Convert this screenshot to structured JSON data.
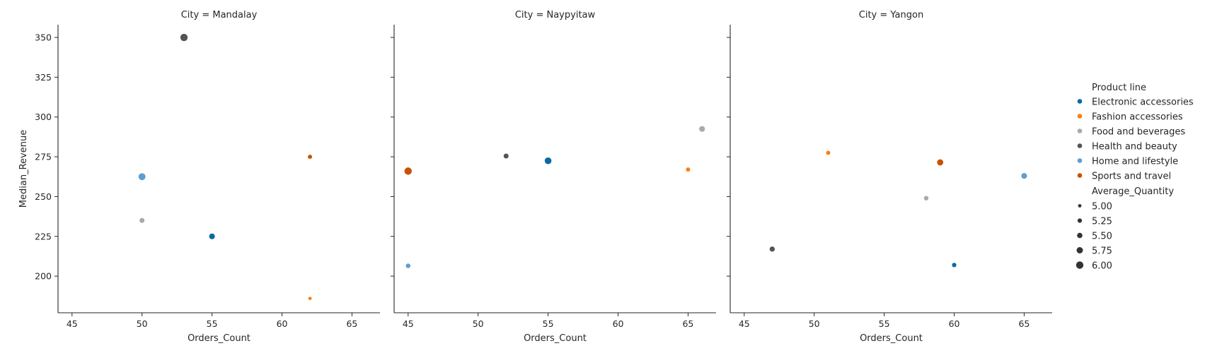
{
  "chart_data": {
    "type": "scatter",
    "xlabel": "Orders_Count",
    "ylabel": "Median_Revenue",
    "xlim": [
      44,
      67
    ],
    "ylim": [
      177,
      358
    ],
    "xticks": [
      45,
      50,
      55,
      60,
      65
    ],
    "yticks": [
      200,
      225,
      250,
      275,
      300,
      325,
      350
    ],
    "facet_var": "City",
    "grid": false,
    "legend_placement": "right",
    "hue_legend": {
      "title": "Product line",
      "entries": [
        {
          "name": "Electronic accessories",
          "color": "#0a6aa1"
        },
        {
          "name": "Fashion accessories",
          "color": "#f77f14"
        },
        {
          "name": "Food and beverages",
          "color": "#a9a9a9"
        },
        {
          "name": "Health and beauty",
          "color": "#545454"
        },
        {
          "name": "Home and lifestyle",
          "color": "#5d9ed3"
        },
        {
          "name": "Sports and travel",
          "color": "#c85200"
        }
      ]
    },
    "size_legend": {
      "title": "Average_Quantity",
      "entries": [
        "5.00",
        "5.25",
        "5.50",
        "5.75",
        "6.00"
      ],
      "values": [
        5.0,
        5.25,
        5.5,
        5.75,
        6.0
      ]
    },
    "panels": [
      {
        "title": "City = Mandalay",
        "points": [
          {
            "series": "Health and beauty",
            "x": 53,
            "y": 350,
            "size": 6.0
          },
          {
            "series": "Sports and travel",
            "x": 62,
            "y": 275,
            "size": 5.2
          },
          {
            "series": "Home and lifestyle",
            "x": 50,
            "y": 262.5,
            "size": 5.9
          },
          {
            "series": "Food and beverages",
            "x": 50,
            "y": 235,
            "size": 5.4
          },
          {
            "series": "Electronic accessories",
            "x": 55,
            "y": 225,
            "size": 5.6
          },
          {
            "series": "Fashion accessories",
            "x": 62,
            "y": 186,
            "size": 4.9
          }
        ]
      },
      {
        "title": "City = Naypyitaw",
        "points": [
          {
            "series": "Food and beverages",
            "x": 66,
            "y": 292.5,
            "size": 5.6
          },
          {
            "series": "Health and beauty",
            "x": 52,
            "y": 275.5,
            "size": 5.4
          },
          {
            "series": "Electronic accessories",
            "x": 55,
            "y": 272.5,
            "size": 5.85
          },
          {
            "series": "Fashion accessories",
            "x": 65,
            "y": 267,
            "size": 5.2
          },
          {
            "series": "Sports and travel",
            "x": 45,
            "y": 266,
            "size": 6.0
          },
          {
            "series": "Home and lifestyle",
            "x": 45,
            "y": 206.5,
            "size": 5.3
          }
        ]
      },
      {
        "title": "City = Yangon",
        "points": [
          {
            "series": "Fashion accessories",
            "x": 51,
            "y": 277.5,
            "size": 5.2
          },
          {
            "series": "Sports and travel",
            "x": 59,
            "y": 271.5,
            "size": 5.7
          },
          {
            "series": "Home and lifestyle",
            "x": 65,
            "y": 263,
            "size": 5.6
          },
          {
            "series": "Food and beverages",
            "x": 58,
            "y": 249,
            "size": 5.3
          },
          {
            "series": "Health and beauty",
            "x": 47,
            "y": 217,
            "size": 5.45
          },
          {
            "series": "Electronic accessories",
            "x": 60,
            "y": 207,
            "size": 5.25
          }
        ]
      }
    ]
  }
}
